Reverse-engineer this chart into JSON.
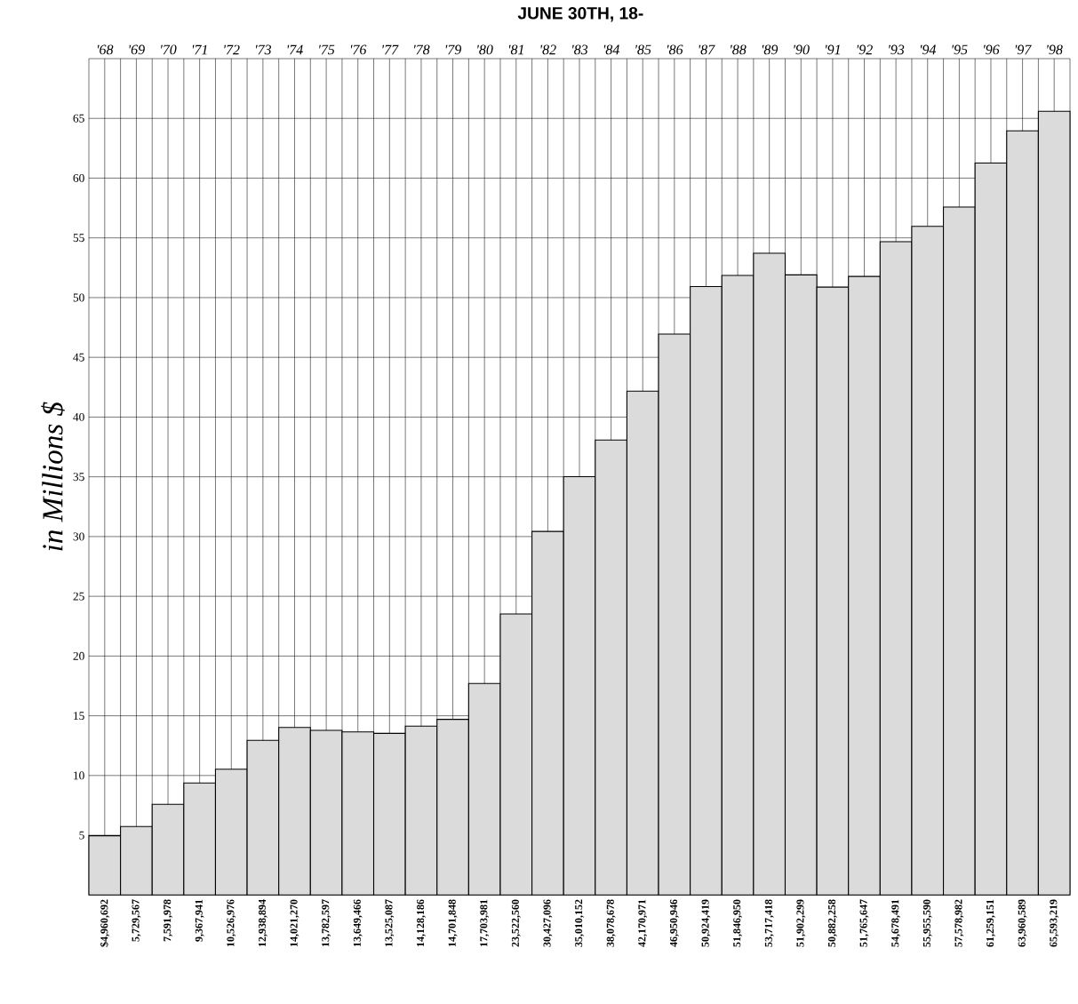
{
  "chart_data": {
    "type": "bar",
    "title": "JUNE 30TH, 18-",
    "ylabel": "in Millions $",
    "categories": [
      "'68",
      "'69",
      "'70",
      "'71",
      "'72",
      "'73",
      "'74",
      "'75",
      "'76",
      "'77",
      "'78",
      "'79",
      "'80",
      "'81",
      "'82",
      "'83",
      "'84",
      "'85",
      "'86",
      "'87",
      "'88",
      "'89",
      "'90",
      "'91",
      "'92",
      "'93",
      "'94",
      "'95",
      "'96",
      "'97",
      "'98"
    ],
    "values": [
      4.96,
      5.73,
      7.59,
      9.37,
      10.53,
      12.94,
      14.02,
      13.78,
      13.65,
      13.53,
      14.13,
      14.7,
      17.7,
      23.52,
      30.43,
      35.01,
      38.08,
      42.17,
      46.95,
      50.92,
      51.85,
      53.72,
      51.9,
      50.88,
      51.77,
      54.68,
      55.96,
      57.58,
      61.26,
      63.96,
      65.59
    ],
    "annotations": [
      "$4,960,692",
      "5,729,567",
      "7,591,978",
      "9,367,941",
      "10,526,976",
      "12,938,894",
      "14,021,270",
      "13,782,597",
      "13,649,466",
      "13,525,087",
      "14,128,186",
      "14,701,848",
      "17,703,981",
      "23,522,560",
      "30,427,096",
      "35,010,152",
      "38,078,678",
      "42,170,971",
      "46,950,946",
      "50,924,419",
      "51,846,950",
      "53,717,418",
      "51,902,299",
      "50,882,258",
      "51,765,647",
      "54,678,491",
      "55,955,590",
      "57,578,982",
      "61,259,151",
      "63,960,589",
      "65,593,219"
    ],
    "color": "#dbdbdb",
    "ylim": [
      0,
      70
    ],
    "yticks": [
      5,
      10,
      15,
      20,
      25,
      30,
      35,
      40,
      45,
      50,
      55,
      60,
      65
    ],
    "grid": true
  }
}
